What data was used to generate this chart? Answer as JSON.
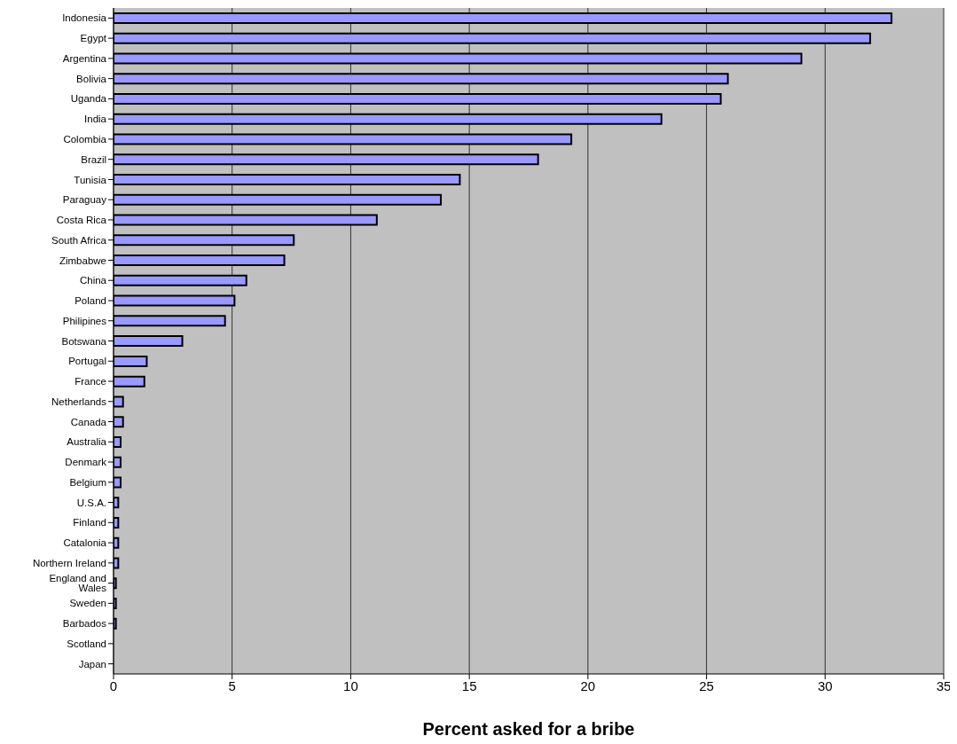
{
  "chart_data": {
    "type": "bar",
    "orientation": "horizontal",
    "xlabel": "Percent asked for a bribe",
    "categories": [
      "Indonesia",
      "Egypt",
      "Argentina",
      "Bolivia",
      "Uganda",
      "India",
      "Colombia",
      "Brazil",
      "Tunisia",
      "Paraguay",
      "Costa Rica",
      "South Africa",
      "Zimbabwe",
      "China",
      "Poland",
      "Philipines",
      "Botswana",
      "Portugal",
      "France",
      "Netherlands",
      "Canada",
      "Australia",
      "Denmark",
      "Belgium",
      "U.S.A.",
      "Finland",
      "Catalonia",
      "Northern Ireland",
      "England and Wales",
      "Sweden",
      "Barbados",
      "Scotland",
      "Japan"
    ],
    "values": [
      32.8,
      31.9,
      29.0,
      25.9,
      25.6,
      23.1,
      19.3,
      17.9,
      14.6,
      13.8,
      11.1,
      7.6,
      7.2,
      5.6,
      5.1,
      4.7,
      2.9,
      1.4,
      1.3,
      0.4,
      0.4,
      0.3,
      0.3,
      0.3,
      0.2,
      0.2,
      0.2,
      0.2,
      0.1,
      0.1,
      0.1,
      0,
      0
    ],
    "color": "#9999ff",
    "xlim": [
      0,
      35
    ],
    "xticks": [
      0,
      5,
      10,
      15,
      20,
      25,
      30,
      35
    ],
    "grid": "x"
  }
}
